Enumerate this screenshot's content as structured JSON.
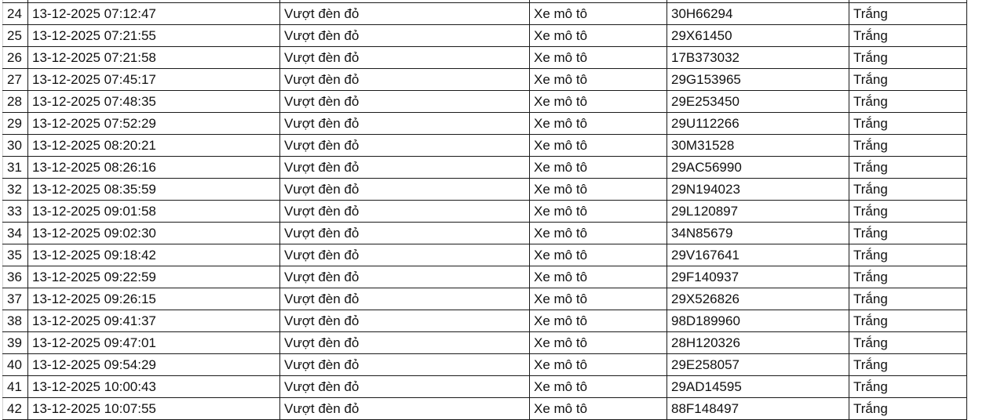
{
  "rows": [
    {
      "no": "",
      "time": "",
      "violation": "",
      "vehicle": "",
      "plate": "",
      "color": "Trắng"
    },
    {
      "no": "24",
      "time": "13-12-2025 07:12:47",
      "violation": "Vượt đèn đỏ",
      "vehicle": "Xe mô tô",
      "plate": "30H66294",
      "color": "Trắng"
    },
    {
      "no": "25",
      "time": "13-12-2025 07:21:55",
      "violation": "Vượt đèn đỏ",
      "vehicle": "Xe mô tô",
      "plate": "29X61450",
      "color": "Trắng"
    },
    {
      "no": "26",
      "time": "13-12-2025 07:21:58",
      "violation": "Vượt đèn đỏ",
      "vehicle": "Xe mô tô",
      "plate": "17B373032",
      "color": "Trắng"
    },
    {
      "no": "27",
      "time": "13-12-2025 07:45:17",
      "violation": "Vượt đèn đỏ",
      "vehicle": "Xe mô tô",
      "plate": "29G153965",
      "color": "Trắng"
    },
    {
      "no": "28",
      "time": "13-12-2025 07:48:35",
      "violation": "Vượt đèn đỏ",
      "vehicle": "Xe mô tô",
      "plate": "29E253450",
      "color": "Trắng"
    },
    {
      "no": "29",
      "time": "13-12-2025 07:52:29",
      "violation": "Vượt đèn đỏ",
      "vehicle": "Xe mô tô",
      "plate": "29U112266",
      "color": "Trắng"
    },
    {
      "no": "30",
      "time": "13-12-2025 08:20:21",
      "violation": "Vượt đèn đỏ",
      "vehicle": "Xe mô tô",
      "plate": "30M31528",
      "color": "Trắng"
    },
    {
      "no": "31",
      "time": "13-12-2025 08:26:16",
      "violation": "Vượt đèn đỏ",
      "vehicle": "Xe mô tô",
      "plate": "29AC56990",
      "color": "Trắng"
    },
    {
      "no": "32",
      "time": "13-12-2025 08:35:59",
      "violation": "Vượt đèn đỏ",
      "vehicle": "Xe mô tô",
      "plate": "29N194023",
      "color": "Trắng"
    },
    {
      "no": "33",
      "time": "13-12-2025 09:01:58",
      "violation": "Vượt đèn đỏ",
      "vehicle": "Xe mô tô",
      "plate": "29L120897",
      "color": "Trắng"
    },
    {
      "no": "34",
      "time": "13-12-2025 09:02:30",
      "violation": "Vượt đèn đỏ",
      "vehicle": "Xe mô tô",
      "plate": "34N85679",
      "color": "Trắng"
    },
    {
      "no": "35",
      "time": "13-12-2025 09:18:42",
      "violation": "Vượt đèn đỏ",
      "vehicle": "Xe mô tô",
      "plate": "29V167641",
      "color": "Trắng"
    },
    {
      "no": "36",
      "time": "13-12-2025 09:22:59",
      "violation": "Vượt đèn đỏ",
      "vehicle": "Xe mô tô",
      "plate": "29F140937",
      "color": "Trắng"
    },
    {
      "no": "37",
      "time": "13-12-2025 09:26:15",
      "violation": "Vượt đèn đỏ",
      "vehicle": "Xe mô tô",
      "plate": "29X526826",
      "color": "Trắng"
    },
    {
      "no": "38",
      "time": "13-12-2025 09:41:37",
      "violation": "Vượt đèn đỏ",
      "vehicle": "Xe mô tô",
      "plate": "98D189960",
      "color": "Trắng"
    },
    {
      "no": "39",
      "time": "13-12-2025 09:47:01",
      "violation": "Vượt đèn đỏ",
      "vehicle": "Xe mô tô",
      "plate": "28H120326",
      "color": "Trắng"
    },
    {
      "no": "40",
      "time": "13-12-2025 09:54:29",
      "violation": "Vượt đèn đỏ",
      "vehicle": "Xe mô tô",
      "plate": "29E258057",
      "color": "Trắng"
    },
    {
      "no": "41",
      "time": "13-12-2025 10:00:43",
      "violation": "Vượt đèn đỏ",
      "vehicle": "Xe mô tô",
      "plate": "29AD14595",
      "color": "Trắng"
    },
    {
      "no": "42",
      "time": "13-12-2025 10:07:55",
      "violation": "Vượt đèn đỏ",
      "vehicle": "Xe mô tô",
      "plate": "88F148497",
      "color": "Trắng"
    }
  ]
}
